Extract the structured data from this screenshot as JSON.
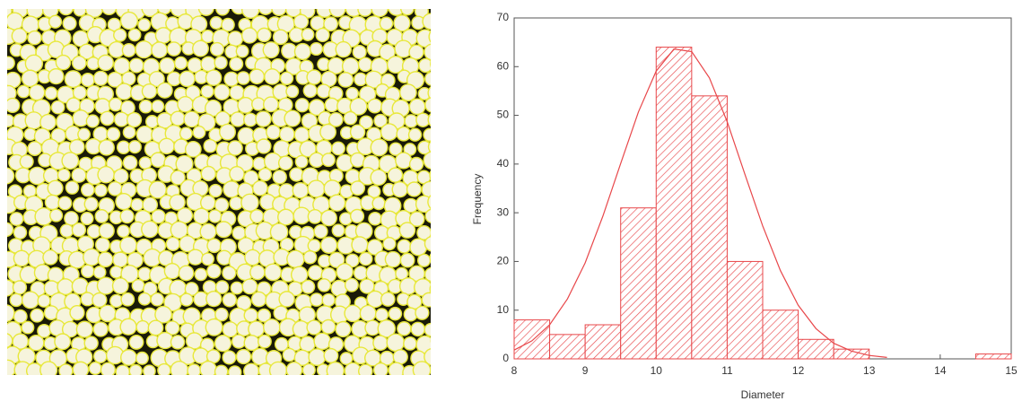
{
  "chart_data": {
    "type": "histogram",
    "xlabel": "Diameter",
    "ylabel": "Frequency",
    "bins": [
      8,
      8.5,
      9,
      9.5,
      10,
      10.5,
      11,
      11.5,
      12,
      12.5,
      13,
      13.5,
      14,
      14.5,
      15
    ],
    "values": [
      8,
      5,
      7,
      31,
      64,
      54,
      20,
      10,
      4,
      2,
      0,
      0,
      0,
      1
    ],
    "color": "#e8474a",
    "curve": {
      "x": [
        8,
        8.25,
        8.5,
        8.75,
        9,
        9.25,
        9.5,
        9.75,
        10,
        10.25,
        10.5,
        10.75,
        11,
        11.25,
        11.5,
        11.75,
        12,
        12.25,
        12.5,
        12.75,
        13,
        13.25
      ],
      "y": [
        1.8,
        3.7,
        7.0,
        12.3,
        19.7,
        29.3,
        40.1,
        50.7,
        59.1,
        63.6,
        63.1,
        57.7,
        48.7,
        37.9,
        27.3,
        18.1,
        11.0,
        6.2,
        3.2,
        1.6,
        0.7,
        0.3
      ]
    },
    "xlim": [
      8,
      15
    ],
    "ylim": [
      0,
      70
    ],
    "xticks": [
      8,
      9,
      10,
      11,
      12,
      13,
      14,
      15
    ],
    "yticks": [
      0,
      10,
      20,
      30,
      40,
      50,
      60,
      70
    ]
  }
}
